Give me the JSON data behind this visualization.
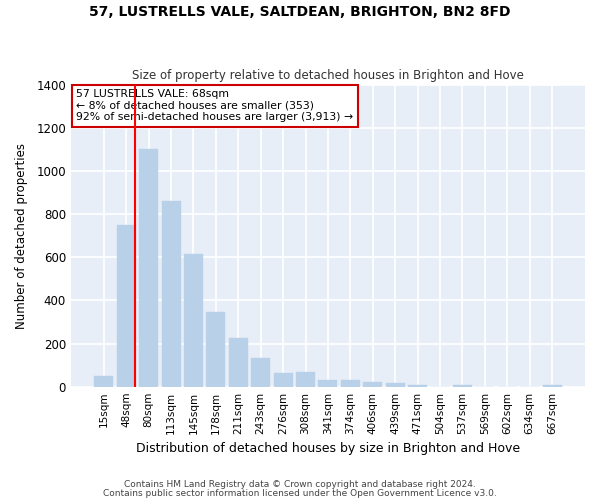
{
  "title": "57, LUSTRELLS VALE, SALTDEAN, BRIGHTON, BN2 8FD",
  "subtitle": "Size of property relative to detached houses in Brighton and Hove",
  "xlabel": "Distribution of detached houses by size in Brighton and Hove",
  "ylabel": "Number of detached properties",
  "footnote1": "Contains HM Land Registry data © Crown copyright and database right 2024.",
  "footnote2": "Contains public sector information licensed under the Open Government Licence v3.0.",
  "bar_labels": [
    "15sqm",
    "48sqm",
    "80sqm",
    "113sqm",
    "145sqm",
    "178sqm",
    "211sqm",
    "243sqm",
    "276sqm",
    "308sqm",
    "341sqm",
    "374sqm",
    "406sqm",
    "439sqm",
    "471sqm",
    "504sqm",
    "537sqm",
    "569sqm",
    "602sqm",
    "634sqm",
    "667sqm"
  ],
  "bar_values": [
    50,
    750,
    1100,
    860,
    615,
    345,
    225,
    135,
    65,
    70,
    30,
    30,
    20,
    15,
    10,
    0,
    10,
    0,
    0,
    0,
    10
  ],
  "bar_color": "#b8d0e8",
  "bar_edgecolor": "#b8d0e8",
  "figure_bg_color": "#ffffff",
  "plot_bg_color": "#e8eef8",
  "grid_color": "#ffffff",
  "red_line_x": 1.38,
  "annotation_line1": "57 LUSTRELLS VALE: 68sqm",
  "annotation_line2": "← 8% of detached houses are smaller (353)",
  "annotation_line3": "92% of semi-detached houses are larger (3,913) →",
  "annotation_box_color": "#cc0000",
  "ylim": [
    0,
    1400
  ],
  "yticks": [
    0,
    200,
    400,
    600,
    800,
    1000,
    1200,
    1400
  ]
}
